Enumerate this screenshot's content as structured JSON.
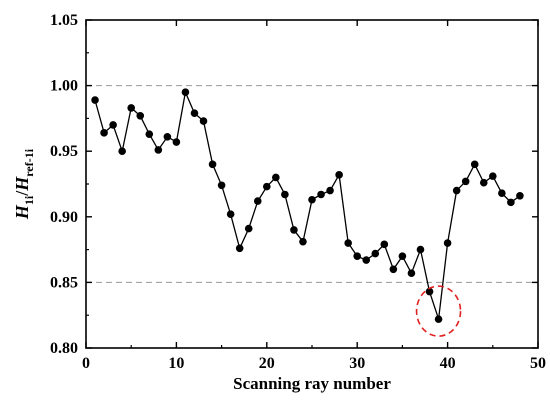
{
  "chart_data": {
    "type": "line",
    "xlabel": "Scanning ray number",
    "ylabel": {
      "main": "H",
      "main_sub": "1i",
      "slash": "/",
      "ref": "H",
      "ref_sub": "ref-1i"
    },
    "xlim": [
      0,
      50
    ],
    "ylim": [
      0.8,
      1.05
    ],
    "x_ticks": [
      "0",
      "10",
      "20",
      "30",
      "40",
      "50"
    ],
    "y_ticks": [
      "0.80",
      "0.85",
      "0.90",
      "0.95",
      "1.00",
      "1.05"
    ],
    "reference_lines": [
      1.0,
      0.85
    ],
    "highlight": {
      "x": 39,
      "y": 0.822,
      "style": "dashed-circle",
      "color": "#e02020"
    },
    "grid": false,
    "series": [
      {
        "color": "#000000",
        "marker": "circle",
        "x": [
          1,
          2,
          3,
          4,
          5,
          6,
          7,
          8,
          9,
          10,
          11,
          12,
          13,
          14,
          15,
          16,
          17,
          18,
          19,
          20,
          21,
          22,
          23,
          24,
          25,
          26,
          27,
          28,
          29,
          30,
          31,
          32,
          33,
          34,
          35,
          36,
          37,
          38,
          39,
          40,
          41,
          42,
          43,
          44,
          45,
          46,
          47,
          48
        ],
        "y": [
          0.989,
          0.964,
          0.97,
          0.95,
          0.983,
          0.977,
          0.963,
          0.951,
          0.961,
          0.957,
          0.995,
          0.979,
          0.973,
          0.94,
          0.924,
          0.902,
          0.876,
          0.891,
          0.912,
          0.923,
          0.93,
          0.917,
          0.89,
          0.881,
          0.913,
          0.917,
          0.92,
          0.932,
          0.88,
          0.87,
          0.867,
          0.872,
          0.879,
          0.86,
          0.87,
          0.857,
          0.875,
          0.843,
          0.822,
          0.88,
          0.92,
          0.927,
          0.94,
          0.926,
          0.931,
          0.918,
          0.911,
          0.916
        ]
      }
    ]
  }
}
